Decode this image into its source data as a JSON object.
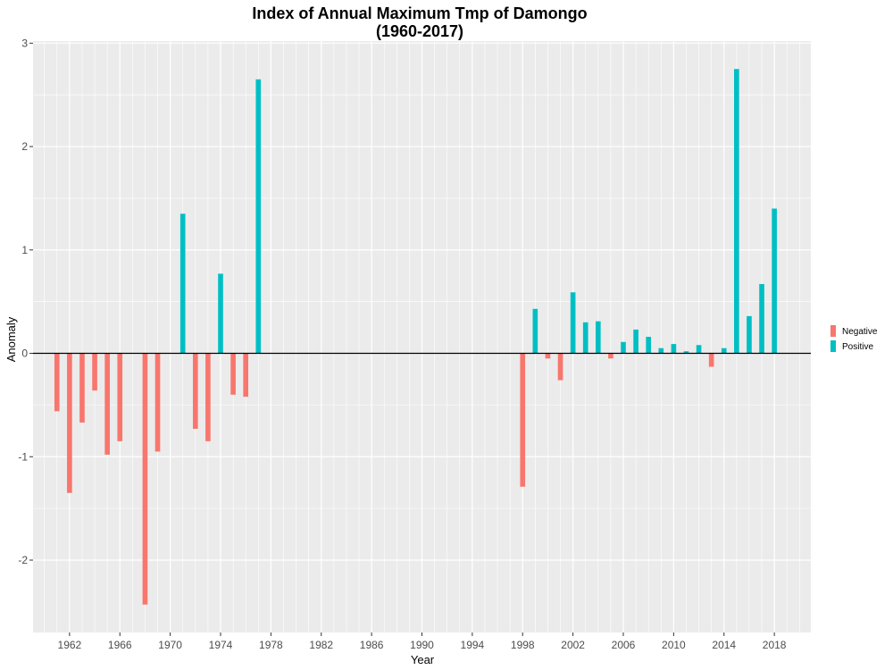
{
  "chart_data": {
    "type": "bar",
    "title_line1": "Index of Annual Maximum Tmp of Damongo",
    "title_line2": "(1960-2017)",
    "xlabel": "Year",
    "ylabel": "Anomaly",
    "xlim": [
      1959.1,
      2020.9
    ],
    "ylim": [
      -2.7,
      3.02
    ],
    "y_ticks": [
      -2,
      -1,
      0,
      1,
      2,
      3
    ],
    "x_ticks": [
      1962,
      1966,
      1970,
      1974,
      1978,
      1982,
      1986,
      1990,
      1994,
      1998,
      2002,
      2006,
      2010,
      2014,
      2018
    ],
    "grid": true,
    "legend_position": "right",
    "colors": {
      "Negative": "#f8766d",
      "Positive": "#00bfc4",
      "panel": "#ebebeb",
      "grid": "#ffffff",
      "zero_line": "#000000"
    },
    "legend": [
      {
        "key": "Negative",
        "label": "Negative"
      },
      {
        "key": "Positive",
        "label": "Positive"
      }
    ],
    "series": [
      {
        "x": 1961,
        "value": -0.56
      },
      {
        "x": 1962,
        "value": -1.35
      },
      {
        "x": 1963,
        "value": -0.67
      },
      {
        "x": 1964,
        "value": -0.36
      },
      {
        "x": 1965,
        "value": -0.98
      },
      {
        "x": 1966,
        "value": -0.85
      },
      {
        "x": 1968,
        "value": -2.43
      },
      {
        "x": 1969,
        "value": -0.95
      },
      {
        "x": 1971,
        "value": 1.35
      },
      {
        "x": 1972,
        "value": -0.73
      },
      {
        "x": 1973,
        "value": -0.85
      },
      {
        "x": 1974,
        "value": 0.77
      },
      {
        "x": 1975,
        "value": -0.4
      },
      {
        "x": 1976,
        "value": -0.42
      },
      {
        "x": 1977,
        "value": 2.65
      },
      {
        "x": 1998,
        "value": -1.29
      },
      {
        "x": 1999,
        "value": 0.43
      },
      {
        "x": 2000,
        "value": -0.05
      },
      {
        "x": 2001,
        "value": -0.26
      },
      {
        "x": 2002,
        "value": 0.59
      },
      {
        "x": 2003,
        "value": 0.3
      },
      {
        "x": 2004,
        "value": 0.31
      },
      {
        "x": 2005,
        "value": -0.05
      },
      {
        "x": 2006,
        "value": 0.11
      },
      {
        "x": 2007,
        "value": 0.23
      },
      {
        "x": 2008,
        "value": 0.16
      },
      {
        "x": 2009,
        "value": 0.05
      },
      {
        "x": 2010,
        "value": 0.09
      },
      {
        "x": 2011,
        "value": 0.02
      },
      {
        "x": 2012,
        "value": 0.08
      },
      {
        "x": 2013,
        "value": -0.13
      },
      {
        "x": 2014,
        "value": 0.05
      },
      {
        "x": 2015,
        "value": 2.75
      },
      {
        "x": 2016,
        "value": 0.36
      },
      {
        "x": 2017,
        "value": 0.67
      },
      {
        "x": 2018,
        "value": 1.4
      }
    ]
  }
}
